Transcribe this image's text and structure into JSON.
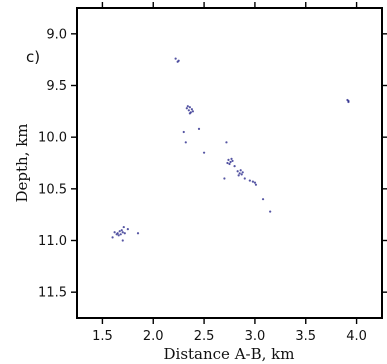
{
  "chart_data": {
    "type": "scatter",
    "panel_label": "c)",
    "title": "",
    "xlabel": "Distance A-B, km",
    "ylabel": "Depth, km",
    "xlim": [
      1.25,
      4.25
    ],
    "ylim": [
      8.75,
      11.75
    ],
    "y_inverted": true,
    "x_ticks": [
      1.5,
      2.0,
      2.5,
      3.0,
      3.5,
      4.0
    ],
    "x_tick_labels": [
      "1.5",
      "2.0",
      "2.5",
      "3.0",
      "3.5",
      "4.0"
    ],
    "y_ticks": [
      9.0,
      9.5,
      10.0,
      10.5,
      11.0,
      11.5
    ],
    "y_tick_labels": [
      "9.0",
      "9.5",
      "10.0",
      "10.5",
      "11.0",
      "11.5"
    ],
    "grid": false,
    "marker_color": "#2b2b8c",
    "series": [
      {
        "points": [
          [
            2.22,
            9.24
          ],
          [
            2.24,
            9.27
          ],
          [
            2.25,
            9.26
          ],
          [
            2.33,
            9.72
          ],
          [
            2.35,
            9.74
          ],
          [
            2.36,
            9.71
          ],
          [
            2.37,
            9.76
          ],
          [
            2.38,
            9.73
          ],
          [
            2.36,
            9.77
          ],
          [
            2.39,
            9.75
          ],
          [
            2.34,
            9.7
          ],
          [
            2.3,
            9.95
          ],
          [
            2.32,
            10.05
          ],
          [
            2.45,
            9.92
          ],
          [
            2.5,
            10.15
          ],
          [
            2.74,
            10.22
          ],
          [
            2.76,
            10.24
          ],
          [
            2.77,
            10.21
          ],
          [
            2.75,
            10.26
          ],
          [
            2.78,
            10.23
          ],
          [
            2.73,
            10.25
          ],
          [
            2.83,
            10.33
          ],
          [
            2.85,
            10.35
          ],
          [
            2.86,
            10.32
          ],
          [
            2.87,
            10.36
          ],
          [
            2.84,
            10.37
          ],
          [
            2.88,
            10.34
          ],
          [
            2.8,
            10.28
          ],
          [
            2.9,
            10.4
          ],
          [
            2.95,
            10.42
          ],
          [
            3.0,
            10.44
          ],
          [
            3.01,
            10.46
          ],
          [
            2.98,
            10.43
          ],
          [
            2.7,
            10.4
          ],
          [
            2.72,
            10.05
          ],
          [
            3.08,
            10.6
          ],
          [
            3.15,
            10.72
          ],
          [
            3.92,
            9.65
          ],
          [
            3.91,
            9.64
          ],
          [
            3.92,
            9.66
          ],
          [
            1.62,
            10.92
          ],
          [
            1.65,
            10.93
          ],
          [
            1.67,
            10.91
          ],
          [
            1.68,
            10.94
          ],
          [
            1.7,
            10.92
          ],
          [
            1.72,
            10.93
          ],
          [
            1.66,
            10.95
          ],
          [
            1.69,
            10.9
          ],
          [
            1.64,
            10.94
          ],
          [
            1.71,
            10.87
          ],
          [
            1.75,
            10.89
          ],
          [
            1.85,
            10.93
          ],
          [
            1.6,
            10.97
          ],
          [
            1.7,
            11.0
          ]
        ]
      }
    ]
  }
}
